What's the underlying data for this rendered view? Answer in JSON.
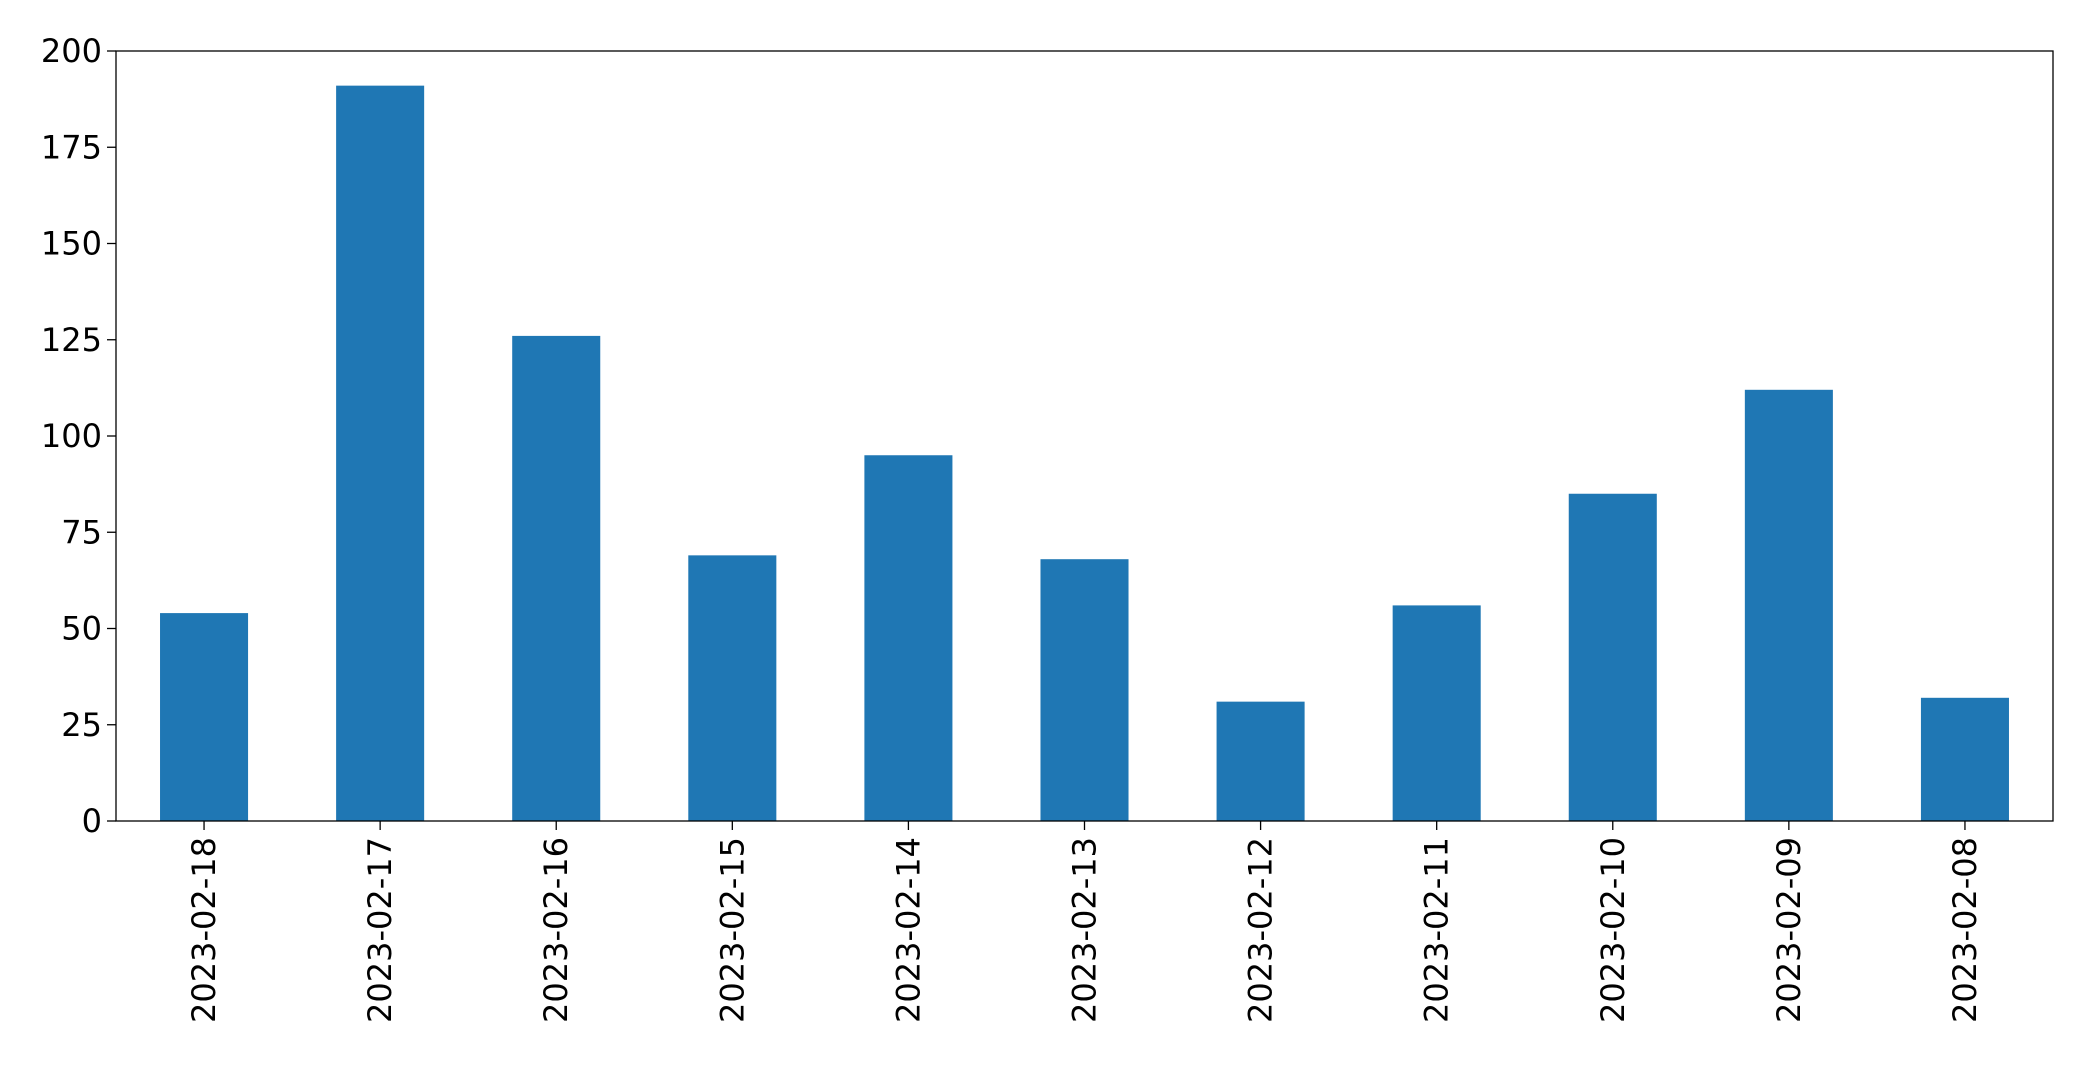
{
  "chart_data": {
    "type": "bar",
    "categories": [
      "2023-02-18",
      "2023-02-17",
      "2023-02-16",
      "2023-02-15",
      "2023-02-14",
      "2023-02-13",
      "2023-02-12",
      "2023-02-11",
      "2023-02-10",
      "2023-02-09",
      "2023-02-08"
    ],
    "values": [
      54,
      191,
      126,
      69,
      95,
      68,
      31,
      56,
      85,
      112,
      32
    ],
    "color": "#1f77b4",
    "ylim": [
      0,
      200
    ],
    "yticks": [
      0,
      25,
      50,
      75,
      100,
      125,
      150,
      175,
      200
    ],
    "grid": false
  }
}
